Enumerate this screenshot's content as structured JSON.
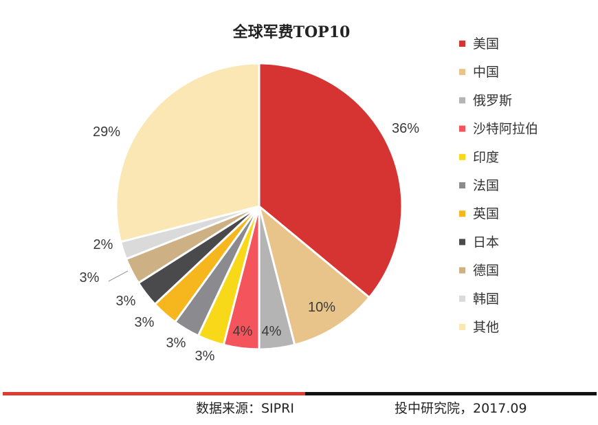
{
  "chart_data": {
    "type": "pie",
    "title": "全球军费TOP10",
    "slices": [
      {
        "name": "美国",
        "value": 36,
        "label": "36%",
        "color": "#d63333"
      },
      {
        "name": "中国",
        "value": 10,
        "label": "10%",
        "color": "#e8c48a"
      },
      {
        "name": "俄罗斯",
        "value": 4,
        "label": "4%",
        "color": "#b4b4b4"
      },
      {
        "name": "沙特阿拉伯",
        "value": 4,
        "label": "4%",
        "color": "#f4555d"
      },
      {
        "name": "印度",
        "value": 3,
        "label": "3%",
        "color": "#f7d91a"
      },
      {
        "name": "法国",
        "value": 3,
        "label": "3%",
        "color": "#8b8b8f"
      },
      {
        "name": "英国",
        "value": 3,
        "label": "3%",
        "color": "#f6b71e"
      },
      {
        "name": "日本",
        "value": 3,
        "label": "3%",
        "color": "#4a4a4c"
      },
      {
        "name": "德国",
        "value": 3,
        "label": "3%",
        "color": "#cdb184"
      },
      {
        "name": "韩国",
        "value": 2,
        "label": "2%",
        "color": "#dadada"
      },
      {
        "name": "其他",
        "value": 29,
        "label": "29%",
        "color": "#fbe7b3"
      }
    ],
    "legend_position": "right"
  },
  "footer": {
    "source": "数据来源：SIPRI",
    "credit": "投中研究院，2017.09"
  }
}
